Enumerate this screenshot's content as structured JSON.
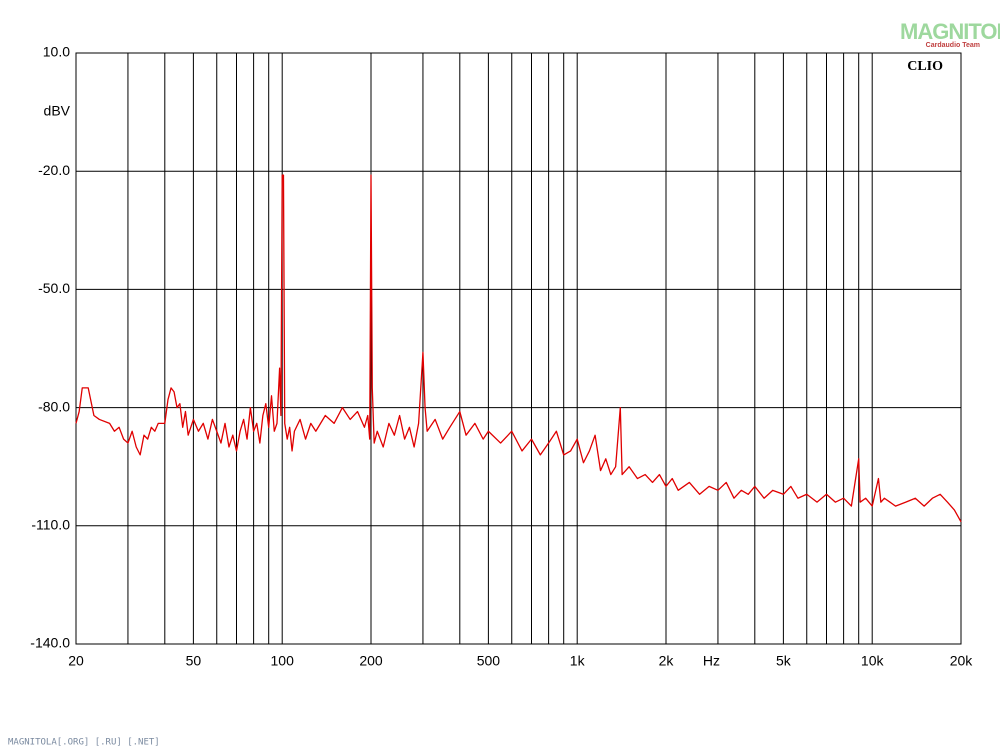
{
  "chart_data": {
    "type": "line",
    "brand": "CLIO",
    "watermark": "MAGNITOLA",
    "watermark_sub": "Cardaudio Team",
    "footer": "MAGNITOLA[.ORG] [.RU] [.NET]",
    "y_label": "dBV",
    "x_label": "Hz",
    "x_scale": "log",
    "grid": true,
    "xlim": [
      20,
      20000
    ],
    "ylim": [
      -140,
      10
    ],
    "yticks": [
      {
        "value": -140,
        "label": "-140.0"
      },
      {
        "value": -110,
        "label": "-110.0"
      },
      {
        "value": -80,
        "label": "-80.0"
      },
      {
        "value": -50,
        "label": "-50.0"
      },
      {
        "value": -20,
        "label": "-20.0"
      },
      {
        "value": 10,
        "label": "10.0"
      }
    ],
    "xticks": [
      20,
      50,
      100,
      200,
      500,
      {
        "value": 1000,
        "label": "1k"
      },
      {
        "value": 2000,
        "label": "2k"
      },
      {
        "value": 5000,
        "label": "5k"
      },
      {
        "value": 10000,
        "label": "10k"
      },
      {
        "value": 20000,
        "label": "20k"
      }
    ],
    "xgrid_minor": [
      30,
      40,
      60,
      70,
      80,
      90,
      300,
      400,
      600,
      700,
      800,
      900,
      3000,
      4000,
      6000,
      7000,
      8000,
      9000
    ],
    "x": [
      20,
      20.5,
      21,
      22,
      23,
      24,
      26,
      27,
      28,
      29,
      30,
      31,
      32,
      33,
      34,
      35,
      36,
      37,
      38,
      40,
      41,
      42,
      43,
      44,
      45,
      46,
      47,
      48,
      50,
      52,
      54,
      56,
      58,
      60,
      62,
      64,
      66,
      68,
      70,
      72,
      74,
      76,
      78,
      80,
      82,
      84,
      86,
      88,
      90,
      92,
      94,
      96,
      98,
      99,
      100,
      101,
      102,
      104,
      106,
      108,
      110,
      115,
      120,
      125,
      130,
      140,
      150,
      160,
      170,
      180,
      190,
      195,
      198,
      200,
      202,
      205,
      210,
      220,
      230,
      240,
      250,
      260,
      270,
      280,
      290,
      300,
      305,
      310,
      330,
      350,
      370,
      400,
      420,
      450,
      480,
      500,
      550,
      600,
      650,
      700,
      750,
      800,
      850,
      900,
      950,
      1000,
      1050,
      1100,
      1150,
      1200,
      1250,
      1300,
      1350,
      1400,
      1420,
      1500,
      1600,
      1700,
      1800,
      1900,
      2000,
      2100,
      2200,
      2400,
      2600,
      2800,
      3000,
      3200,
      3400,
      3600,
      3800,
      4000,
      4300,
      4600,
      5000,
      5300,
      5600,
      6000,
      6500,
      7000,
      7500,
      8000,
      8500,
      9000,
      9100,
      9500,
      10000,
      10500,
      10700,
      11000,
      12000,
      13000,
      14000,
      15000,
      16000,
      17000,
      18000,
      19000,
      20000
    ],
    "series": [
      {
        "color": "#e00000",
        "values": [
          -84,
          -81,
          -75,
          -75,
          -82,
          -83,
          -84,
          -86,
          -85,
          -88,
          -89,
          -86,
          -90,
          -92,
          -87,
          -88,
          -85,
          -86,
          -84,
          -84,
          -78,
          -75,
          -76,
          -80,
          -79,
          -85,
          -81,
          -87,
          -83,
          -86,
          -84,
          -88,
          -83,
          -86,
          -89,
          -84,
          -90,
          -87,
          -91,
          -86,
          -83,
          -88,
          -80,
          -86,
          -84,
          -89,
          -82,
          -79,
          -85,
          -77,
          -86,
          -84,
          -70,
          -82,
          -21,
          -21,
          -84,
          -88,
          -85,
          -91,
          -86,
          -83,
          -88,
          -84,
          -86,
          -82,
          -84,
          -80,
          -83,
          -81,
          -85,
          -82,
          -88,
          -21,
          -75,
          -89,
          -86,
          -90,
          -84,
          -87,
          -82,
          -88,
          -85,
          -90,
          -84,
          -66,
          -80,
          -86,
          -83,
          -88,
          -85,
          -81,
          -87,
          -84,
          -88,
          -86,
          -89,
          -86,
          -91,
          -88,
          -92,
          -89,
          -86,
          -92,
          -91,
          -88,
          -94,
          -91,
          -87,
          -96,
          -93,
          -97,
          -95,
          -80,
          -97,
          -95,
          -98,
          -97,
          -99,
          -97,
          -100,
          -98,
          -101,
          -99,
          -102,
          -100,
          -101,
          -99,
          -103,
          -101,
          -102,
          -100,
          -103,
          -101,
          -102,
          -100,
          -103,
          -102,
          -104,
          -102,
          -104,
          -103,
          -105,
          -93,
          -104,
          -103,
          -105,
          -98,
          -104,
          -103,
          -105,
          -104,
          -103,
          -105,
          -103,
          -102,
          -104,
          -106,
          -109
        ]
      }
    ]
  }
}
